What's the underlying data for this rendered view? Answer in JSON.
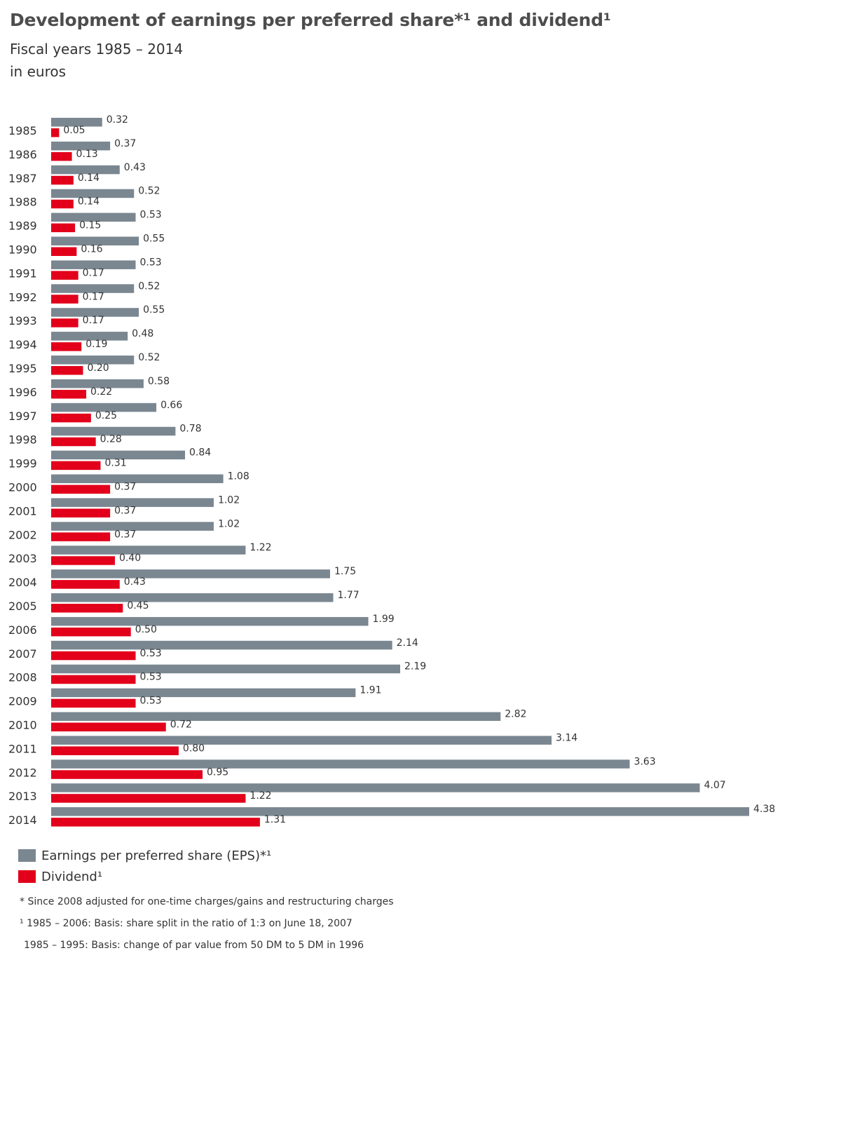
{
  "title": "Development of earnings per preferred share*¹ and dividend¹",
  "subtitle": "Fiscal years 1985 – 2014",
  "units": "in euros",
  "colors": {
    "eps": "#7a8791",
    "dividend": "#e2001a",
    "text": "#333333"
  },
  "legend": {
    "eps_label": "Earnings per preferred share (EPS)*¹",
    "dividend_label": "Dividend¹"
  },
  "footnotes": [
    "* Since 2008 adjusted for one-time charges/gains and restructuring charges",
    "¹ 1985 – 2006: Basis: share split in the ratio of 1:3 on June 18, 2007",
    "1985 – 1995: Basis: change of par value from 50 DM to 5 DM in 1996"
  ],
  "chart_data": {
    "type": "bar",
    "orientation": "horizontal",
    "title": "Development of earnings per preferred share*¹ and dividend¹",
    "subtitle": "Fiscal years 1985 – 2014",
    "units": "in euros",
    "grid": false,
    "legend_position": "bottom-left",
    "categories": [
      "1985",
      "1986",
      "1987",
      "1988",
      "1989",
      "1990",
      "1991",
      "1992",
      "1993",
      "1994",
      "1995",
      "1996",
      "1997",
      "1998",
      "1999",
      "2000",
      "2001",
      "2002",
      "2003",
      "2004",
      "2005",
      "2006",
      "2007",
      "2008",
      "2009",
      "2010",
      "2011",
      "2012",
      "2013",
      "2014"
    ],
    "series": [
      {
        "name": "Earnings per preferred share (EPS)*¹",
        "values": [
          0.32,
          0.37,
          0.43,
          0.52,
          0.53,
          0.55,
          0.53,
          0.52,
          0.55,
          0.48,
          0.52,
          0.58,
          0.66,
          0.78,
          0.84,
          1.08,
          1.02,
          1.02,
          1.22,
          1.75,
          1.77,
          1.99,
          2.14,
          2.19,
          1.91,
          2.82,
          3.14,
          3.63,
          4.07,
          4.38
        ],
        "labels": [
          "0.32",
          "0.37",
          "0.43",
          "0.52",
          "0.53",
          "0.55",
          "0.53",
          "0.52",
          "0.55",
          "0.48",
          "0.52",
          "0.58",
          "0.66",
          "0.78",
          "0.84",
          "1.08",
          "1.02",
          "1.02",
          "1.22",
          "1.75",
          "1.77",
          "1.99",
          "2.14",
          "2.19",
          "1.91",
          "2.82",
          "3.14",
          "3.63",
          "4.07",
          "4.38"
        ]
      },
      {
        "name": "Dividend¹",
        "values": [
          0.05,
          0.13,
          0.14,
          0.14,
          0.15,
          0.16,
          0.17,
          0.17,
          0.17,
          0.19,
          0.2,
          0.22,
          0.25,
          0.28,
          0.31,
          0.37,
          0.37,
          0.37,
          0.4,
          0.43,
          0.45,
          0.5,
          0.53,
          0.53,
          0.53,
          0.72,
          0.8,
          0.95,
          1.22,
          1.31
        ],
        "labels": [
          "0.05",
          "0.13",
          "0.14",
          "0.14",
          "0.15",
          "0.16",
          "0.17",
          "0.17",
          "0.17",
          "0.19",
          "0.20",
          "0.22",
          "0.25",
          "0.28",
          "0.31",
          "0.37",
          "0.37",
          "0.37",
          "0.40",
          "0.43",
          "0.45",
          "0.50",
          "0.53",
          "0.53",
          "0.53",
          "0.72",
          "0.80",
          "0.95",
          "1.22",
          "1.31"
        ]
      }
    ],
    "xlim": [
      0,
      4.38
    ]
  }
}
